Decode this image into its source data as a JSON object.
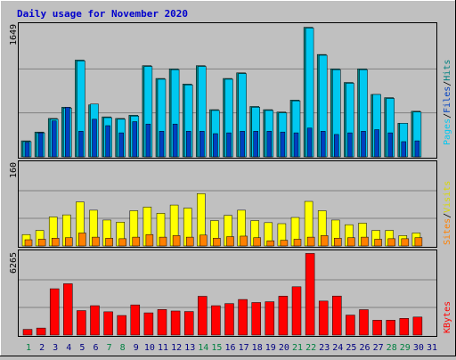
{
  "title": "Daily usage for November 2020",
  "colors": {
    "background": "#c0c0c0",
    "plot": "#c0c0c0",
    "title": "#0000cc",
    "hits": "#008080",
    "files": "#00c8f0",
    "pages": "#0040c0",
    "visits": "#ffff00",
    "sites": "#ff8000",
    "kbytes": "#ff0000",
    "weekend": "#008040",
    "weekday": "#000080"
  },
  "right_labels": {
    "pages": "Pages",
    "files": "Files",
    "hits": "Hits",
    "sites": "Sites",
    "visits": "Visits",
    "kbytes": "KBytes",
    "sep": "/"
  },
  "chart_data": [
    {
      "type": "bar",
      "name": "hits-files-pages",
      "ymax_label": "1649",
      "ylim": [
        0,
        1649
      ],
      "series": [
        {
          "name": "Hits",
          "values": [
            200,
            310,
            480,
            620,
            1210,
            650,
            500,
            480,
            520,
            1140,
            980,
            1100,
            910,
            1140,
            590,
            980,
            1050,
            630,
            590,
            560,
            710,
            1620,
            1280,
            1100,
            930,
            1100,
            780,
            740,
            420,
            570
          ]
        },
        {
          "name": "Files",
          "values": [
            190,
            300,
            470,
            610,
            1200,
            660,
            490,
            470,
            510,
            1130,
            970,
            1090,
            900,
            1130,
            580,
            970,
            1040,
            620,
            580,
            550,
            700,
            1610,
            1270,
            1090,
            920,
            1090,
            780,
            730,
            420,
            560
          ]
        },
        {
          "name": "Pages",
          "values": [
            180,
            300,
            450,
            620,
            320,
            470,
            390,
            300,
            440,
            410,
            320,
            410,
            320,
            320,
            290,
            300,
            320,
            320,
            320,
            310,
            300,
            360,
            320,
            280,
            300,
            320,
            340,
            300,
            190,
            200
          ]
        }
      ]
    },
    {
      "type": "bar",
      "name": "visits-sites",
      "ymax_label": "160",
      "ylim": [
        0,
        160
      ],
      "series": [
        {
          "name": "Visits",
          "values": [
            22,
            30,
            56,
            60,
            85,
            69,
            50,
            46,
            68,
            75,
            63,
            79,
            73,
            101,
            49,
            59,
            69,
            49,
            45,
            43,
            55,
            86,
            68,
            50,
            41,
            44,
            30,
            30,
            20,
            25
          ]
        },
        {
          "name": "Sites",
          "values": [
            12,
            13,
            15,
            16,
            25,
            17,
            15,
            14,
            17,
            22,
            17,
            20,
            17,
            21,
            15,
            18,
            19,
            16,
            10,
            11,
            13,
            17,
            20,
            15,
            16,
            17,
            13,
            14,
            14,
            16
          ]
        }
      ]
    },
    {
      "type": "bar",
      "name": "kbytes",
      "ymax_label": "6265",
      "ylim": [
        0,
        6265
      ],
      "series": [
        {
          "name": "KBytes",
          "values": [
            430,
            530,
            3500,
            3880,
            1850,
            2220,
            1760,
            1480,
            2280,
            1680,
            1930,
            1820,
            1780,
            2930,
            2220,
            2380,
            2690,
            2460,
            2520,
            2940,
            3650,
            6170,
            2570,
            2950,
            1510,
            1920,
            1120,
            1120,
            1260,
            1360
          ]
        }
      ]
    }
  ],
  "x_labels": [
    "1",
    "2",
    "3",
    "4",
    "5",
    "6",
    "7",
    "8",
    "9",
    "10",
    "11",
    "12",
    "13",
    "14",
    "15",
    "16",
    "17",
    "18",
    "19",
    "20",
    "21",
    "22",
    "23",
    "24",
    "25",
    "26",
    "27",
    "28",
    "29",
    "30",
    "31"
  ],
  "weekend_days": [
    1,
    7,
    8,
    14,
    15,
    21,
    22,
    28,
    29
  ]
}
